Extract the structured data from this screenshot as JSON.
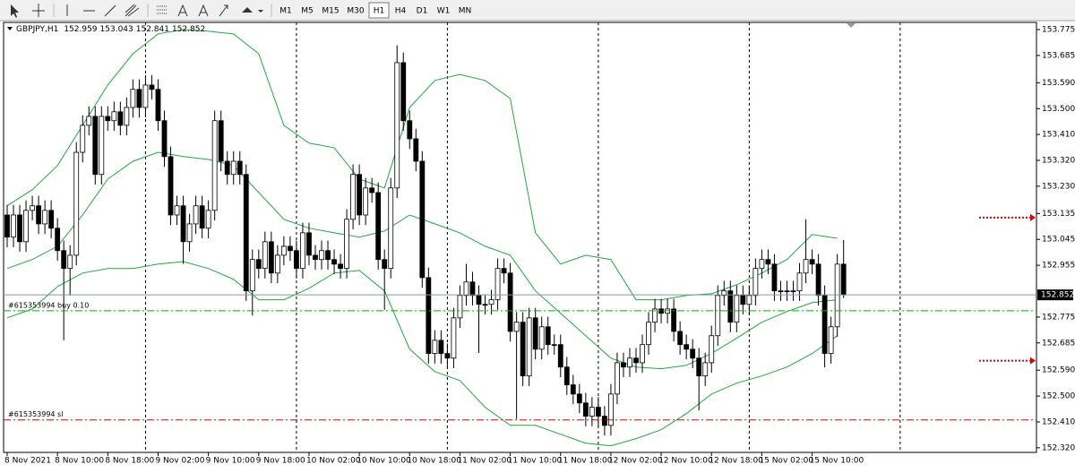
{
  "toolbar": {
    "timeframes": [
      "M1",
      "M5",
      "M15",
      "M30",
      "H1",
      "H4",
      "D1",
      "W1",
      "MN"
    ],
    "active_timeframe": "H1"
  },
  "chart_data": {
    "type": "candlestick",
    "title": "GBPJPY,H1",
    "last_ohlc": [
      152.959,
      153.043,
      152.841,
      152.852
    ],
    "ylim": [
      152.304,
      153.8
    ],
    "yticks": [
      153.775,
      153.685,
      {
        "value": 153.59,
        "label": "153.590"
      },
      {
        "value": 153.5,
        "label": "153.500"
      },
      {
        "value": 153.41,
        "label": "153.410"
      },
      {
        "value": 153.32,
        "label": "153.320"
      },
      {
        "value": 153.23,
        "label": "153.230"
      },
      153.135,
      153.045,
      152.955,
      152.775,
      152.685,
      {
        "value": 152.59,
        "label": "152.590"
      },
      {
        "value": 152.5,
        "label": "152.500"
      },
      {
        "value": 152.41,
        "label": "152.410"
      },
      {
        "value": 152.32,
        "label": "152.320"
      }
    ],
    "grid": false,
    "period_separators": true,
    "x_labels": [
      "8 Nov 2021",
      "8 Nov 10:00",
      "8 Nov 18:00",
      "9 Nov 02:00",
      "9 Nov 10:00",
      "9 Nov 18:00",
      "10 Nov 02:00",
      "10 Nov 10:00",
      "10 Nov 18:00",
      "11 Nov 02:00",
      "11 Nov 10:00",
      "11 Nov 18:00",
      "12 Nov 02:00",
      "12 Nov 10:00",
      "12 Nov 18:00",
      "15 Nov 02:00",
      "15 Nov 10:00"
    ],
    "open": [
      153.13,
      153.053,
      153.13,
      153.037,
      153.146,
      153.162,
      153.099,
      153.146,
      153.084,
      153.006,
      152.944,
      152.99,
      153.348,
      153.442,
      153.473,
      153.271,
      153.473,
      153.458,
      153.489,
      153.442,
      153.504,
      153.567,
      153.504,
      153.582,
      153.567,
      153.458,
      153.333,
      153.13,
      153.162,
      153.037,
      153.099,
      153.162,
      153.084,
      153.146,
      153.458,
      153.317,
      153.271,
      153.317,
      153.271,
      152.866,
      152.975,
      152.944,
      153.037,
      152.928,
      152.99,
      153.021,
      153.006,
      152.944,
      153.068,
      152.99,
      152.975,
      153.006,
      152.975,
      152.959,
      152.944,
      153.115,
      153.271,
      153.13,
      153.224,
      153.208,
      152.975,
      152.944,
      153.224,
      153.66,
      153.458,
      153.395,
      153.317,
      152.912,
      152.648,
      152.694,
      152.648,
      152.632,
      152.772,
      152.85,
      152.897,
      152.85,
      152.819,
      152.819,
      152.835,
      152.944,
      152.928,
      152.725,
      152.757,
      152.57,
      152.772,
      152.663,
      152.741,
      152.679,
      152.679,
      152.601,
      152.539,
      152.507,
      152.476,
      152.43,
      152.461,
      152.43,
      152.398,
      152.507,
      152.616,
      152.601,
      152.632,
      152.616,
      152.679,
      152.757,
      152.803,
      152.788,
      152.803,
      152.725,
      152.679,
      152.663,
      152.632,
      152.57,
      152.616,
      152.71,
      152.85,
      152.866,
      152.757,
      152.85,
      152.819,
      152.85,
      152.944,
      152.975,
      152.959,
      152.866,
      152.866,
      152.866,
      152.866,
      152.928,
      152.975,
      152.959,
      152.85,
      152.648,
      152.741,
      152.959
    ],
    "high": [
      153.165,
      153.165,
      153.165,
      153.181,
      153.197,
      153.197,
      153.181,
      153.181,
      153.119,
      153.041,
      153.025,
      153.383,
      153.477,
      153.508,
      153.508,
      153.508,
      153.508,
      153.524,
      153.524,
      153.539,
      153.602,
      153.602,
      153.617,
      153.617,
      153.602,
      153.493,
      153.368,
      153.197,
      153.197,
      153.134,
      153.197,
      153.197,
      153.181,
      153.493,
      153.493,
      153.352,
      153.352,
      153.352,
      153.306,
      153.01,
      153.01,
      153.072,
      153.072,
      153.025,
      153.056,
      153.056,
      153.041,
      153.103,
      153.103,
      153.025,
      153.041,
      153.041,
      153.01,
      152.994,
      153.15,
      153.306,
      153.306,
      153.259,
      153.259,
      153.243,
      153.01,
      153.259,
      153.72,
      153.695,
      153.493,
      153.43,
      153.352,
      152.947,
      152.729,
      152.729,
      152.683,
      152.807,
      152.885,
      152.96,
      152.932,
      152.885,
      152.854,
      152.87,
      152.979,
      152.979,
      152.963,
      152.792,
      152.792,
      152.807,
      152.807,
      152.776,
      152.776,
      152.714,
      152.714,
      152.636,
      152.574,
      152.542,
      152.511,
      152.496,
      152.496,
      152.465,
      152.542,
      152.651,
      152.651,
      152.667,
      152.667,
      152.714,
      152.792,
      152.838,
      152.838,
      152.838,
      152.838,
      152.76,
      152.714,
      152.698,
      152.667,
      152.651,
      152.745,
      152.885,
      152.901,
      152.901,
      152.885,
      152.885,
      152.885,
      152.979,
      153.01,
      153.01,
      152.994,
      152.901,
      152.901,
      152.901,
      152.963,
      153.115,
      153.01,
      152.994,
      152.885,
      152.776,
      152.994,
      153.043
    ],
    "low": [
      153.018,
      153.018,
      153.002,
      153.002,
      153.111,
      153.064,
      153.064,
      153.049,
      152.971,
      152.694,
      152.85,
      152.955,
      153.313,
      153.407,
      153.236,
      153.236,
      153.423,
      153.423,
      153.407,
      153.407,
      153.469,
      153.469,
      153.469,
      153.532,
      153.423,
      153.298,
      153.095,
      153.095,
      152.96,
      153.002,
      153.064,
      153.049,
      153.049,
      153.111,
      153.282,
      153.236,
      153.236,
      153.236,
      152.831,
      152.78,
      152.909,
      152.909,
      152.893,
      152.893,
      152.955,
      152.971,
      152.909,
      152.909,
      152.955,
      152.94,
      152.94,
      152.94,
      152.924,
      152.909,
      152.909,
      153.08,
      153.095,
      153.095,
      153.173,
      152.94,
      152.8,
      152.909,
      153.189,
      153.423,
      153.36,
      153.282,
      152.877,
      152.613,
      152.613,
      152.613,
      152.597,
      152.597,
      152.737,
      152.815,
      152.815,
      152.65,
      152.784,
      152.784,
      152.8,
      152.893,
      152.69,
      152.42,
      152.535,
      152.535,
      152.628,
      152.628,
      152.644,
      152.644,
      152.566,
      152.504,
      152.472,
      152.441,
      152.395,
      152.395,
      152.395,
      152.363,
      152.363,
      152.472,
      152.566,
      152.566,
      152.581,
      152.581,
      152.644,
      152.722,
      152.753,
      152.753,
      152.69,
      152.644,
      152.628,
      152.597,
      152.45,
      152.535,
      152.581,
      152.675,
      152.815,
      152.722,
      152.722,
      152.784,
      152.784,
      152.815,
      152.909,
      152.924,
      152.831,
      152.831,
      152.831,
      152.831,
      152.831,
      152.893,
      152.924,
      152.815,
      152.6,
      152.613,
      152.706,
      152.841
    ],
    "close": [
      153.053,
      153.13,
      153.037,
      153.146,
      153.162,
      153.099,
      153.146,
      153.084,
      153.006,
      152.944,
      152.99,
      153.348,
      153.442,
      153.473,
      153.271,
      153.473,
      153.458,
      153.489,
      153.442,
      153.504,
      153.567,
      153.504,
      153.582,
      153.567,
      153.458,
      153.333,
      153.13,
      153.162,
      153.037,
      153.099,
      153.162,
      153.084,
      153.146,
      153.458,
      153.317,
      153.271,
      153.317,
      153.271,
      152.866,
      152.975,
      152.944,
      153.037,
      152.928,
      152.99,
      153.021,
      153.006,
      152.944,
      153.068,
      152.99,
      152.975,
      153.006,
      152.975,
      152.959,
      152.944,
      153.115,
      153.271,
      153.13,
      153.224,
      153.208,
      152.975,
      152.944,
      153.224,
      153.66,
      153.458,
      153.395,
      153.317,
      152.912,
      152.648,
      152.694,
      152.648,
      152.632,
      152.772,
      152.85,
      152.897,
      152.85,
      152.819,
      152.819,
      152.835,
      152.944,
      152.928,
      152.725,
      152.757,
      152.57,
      152.772,
      152.663,
      152.741,
      152.679,
      152.679,
      152.601,
      152.539,
      152.507,
      152.476,
      152.43,
      152.461,
      152.43,
      152.398,
      152.507,
      152.616,
      152.601,
      152.632,
      152.616,
      152.679,
      152.757,
      152.803,
      152.788,
      152.803,
      152.725,
      152.679,
      152.663,
      152.632,
      152.57,
      152.616,
      152.71,
      152.85,
      152.866,
      152.757,
      152.85,
      152.819,
      152.85,
      152.944,
      152.975,
      152.959,
      152.866,
      152.866,
      152.866,
      152.866,
      152.928,
      152.975,
      152.959,
      152.85,
      152.648,
      152.741,
      152.959,
      152.852
    ],
    "bands": {
      "color": "#22a83c",
      "x": [
        0,
        4,
        8,
        12,
        16,
        20,
        24,
        28,
        32,
        36,
        40,
        44,
        48,
        52,
        56,
        60,
        64,
        68,
        72,
        76,
        80,
        84,
        88,
        92,
        96,
        100,
        104,
        108,
        112,
        116,
        120,
        124,
        128,
        132
      ],
      "upper": [
        153.162,
        153.218,
        153.302,
        153.442,
        153.582,
        153.691,
        153.76,
        153.775,
        153.769,
        153.76,
        153.691,
        153.442,
        153.38,
        153.364,
        153.255,
        153.224,
        153.504,
        153.598,
        153.619,
        153.598,
        153.535,
        153.068,
        152.959,
        152.99,
        152.975,
        152.835,
        152.835,
        152.85,
        152.856,
        152.887,
        152.928,
        152.975,
        153.062,
        153.049
      ],
      "middle": [
        152.944,
        152.975,
        153.021,
        153.13,
        153.255,
        153.317,
        153.348,
        153.333,
        153.323,
        153.302,
        153.208,
        153.115,
        153.084,
        153.068,
        153.053,
        153.074,
        153.13,
        153.099,
        153.068,
        153.021,
        152.99,
        152.866,
        152.788,
        152.71,
        152.632,
        152.601,
        152.595,
        152.607,
        152.648,
        152.701,
        152.757,
        152.794,
        152.825,
        152.835
      ],
      "lower": [
        152.772,
        152.803,
        152.881,
        152.928,
        152.944,
        152.944,
        152.959,
        152.968,
        152.944,
        152.906,
        152.835,
        152.835,
        152.875,
        152.928,
        152.937,
        152.866,
        152.663,
        152.585,
        152.554,
        152.461,
        152.398,
        152.398,
        152.367,
        152.336,
        152.327,
        152.352,
        152.383,
        152.439,
        152.507,
        152.545,
        152.57,
        152.601,
        152.648,
        152.71
      ]
    },
    "last_price": 152.852,
    "orders": [
      {
        "label": "#615353994 buy 0.10",
        "price": 152.797,
        "color": "#00b400"
      },
      {
        "label": "#615353994 sl",
        "price": 152.417,
        "color": "#e00000"
      }
    ],
    "arrow_levels": [
      153.121,
      152.623
    ]
  }
}
